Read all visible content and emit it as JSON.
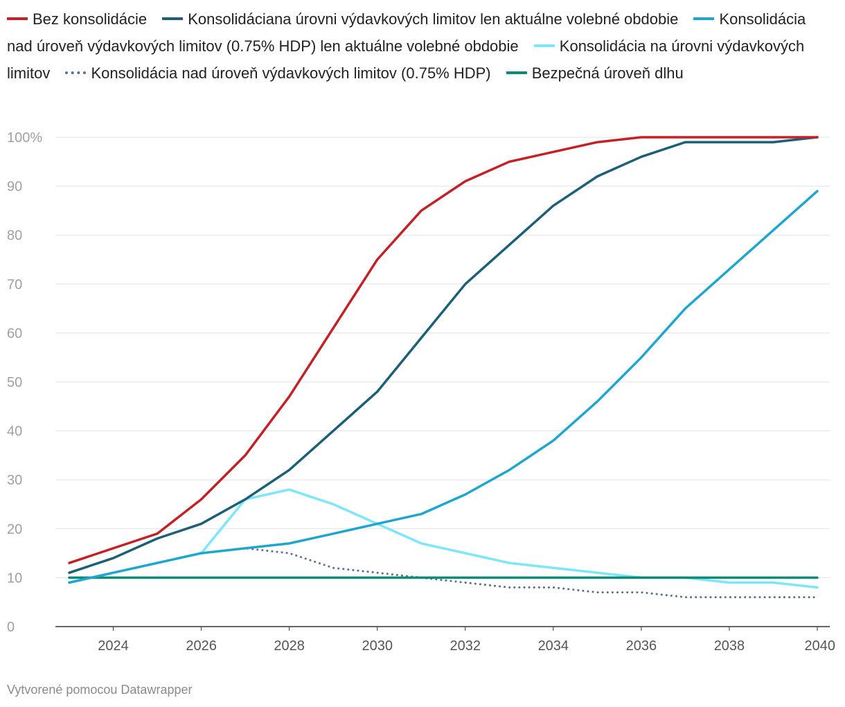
{
  "chart_data": {
    "type": "line",
    "title": "",
    "xlabel": "",
    "ylabel": "",
    "x": [
      2023,
      2024,
      2025,
      2026,
      2027,
      2028,
      2029,
      2030,
      2031,
      2032,
      2033,
      2034,
      2035,
      2036,
      2037,
      2038,
      2039,
      2040
    ],
    "x_ticks": [
      "2024",
      "2026",
      "2028",
      "2030",
      "2032",
      "2034",
      "2036",
      "2038",
      "2040"
    ],
    "y_ticks": [
      "100%",
      "90",
      "80",
      "70",
      "60",
      "50",
      "40",
      "30",
      "20",
      "10",
      "0"
    ],
    "ylim": [
      0,
      100
    ],
    "xlim": [
      2023,
      2040
    ],
    "grid": true,
    "legend_position": "top",
    "series": [
      {
        "name": "Bez konsolidácie",
        "color": "#c42126",
        "style": "solid",
        "values": [
          13,
          16,
          19,
          26,
          35,
          47,
          61,
          75,
          85,
          91,
          95,
          97,
          99,
          100,
          100,
          100,
          100,
          100
        ]
      },
      {
        "name": "Konsolidáciana úrovni výdavkových limitov len aktuálne volebné obdobie",
        "color": "#1b5f78",
        "style": "solid",
        "values": [
          11,
          14,
          18,
          21,
          26,
          32,
          40,
          48,
          59,
          70,
          78,
          86,
          92,
          96,
          99,
          99,
          99,
          100
        ]
      },
      {
        "name": "Konsolidácia nad úroveň výdavkových limitov (0.75% HDP) len aktuálne volebné obdobie",
        "color": "#1fa6cf",
        "style": "solid",
        "values": [
          9,
          11,
          13,
          15,
          16,
          17,
          19,
          21,
          23,
          27,
          32,
          38,
          46,
          55,
          65,
          73,
          81,
          89
        ]
      },
      {
        "name": "Konsolidácia na úrovni výdavkových limitov",
        "color": "#7de6fa",
        "style": "solid",
        "values": [
          9,
          11,
          13,
          15,
          26,
          28,
          25,
          21,
          17,
          15,
          13,
          12,
          11,
          10,
          10,
          9,
          9,
          8
        ]
      },
      {
        "name": "Konsolidácia nad úroveň výdavkových limitov (0.75% HDP)",
        "color": "#5c6e8f",
        "style": "dotted",
        "values": [
          9,
          11,
          13,
          15,
          16,
          15,
          12,
          11,
          10,
          9,
          8,
          8,
          7,
          7,
          6,
          6,
          6,
          6
        ]
      },
      {
        "name": "Bezpečná úroveň dlhu",
        "color": "#0b8a74",
        "style": "solid",
        "values": [
          10,
          10,
          10,
          10,
          10,
          10,
          10,
          10,
          10,
          10,
          10,
          10,
          10,
          10,
          10,
          10,
          10,
          10
        ]
      }
    ]
  },
  "footer": "Vytvorené pomocou Datawrapper"
}
